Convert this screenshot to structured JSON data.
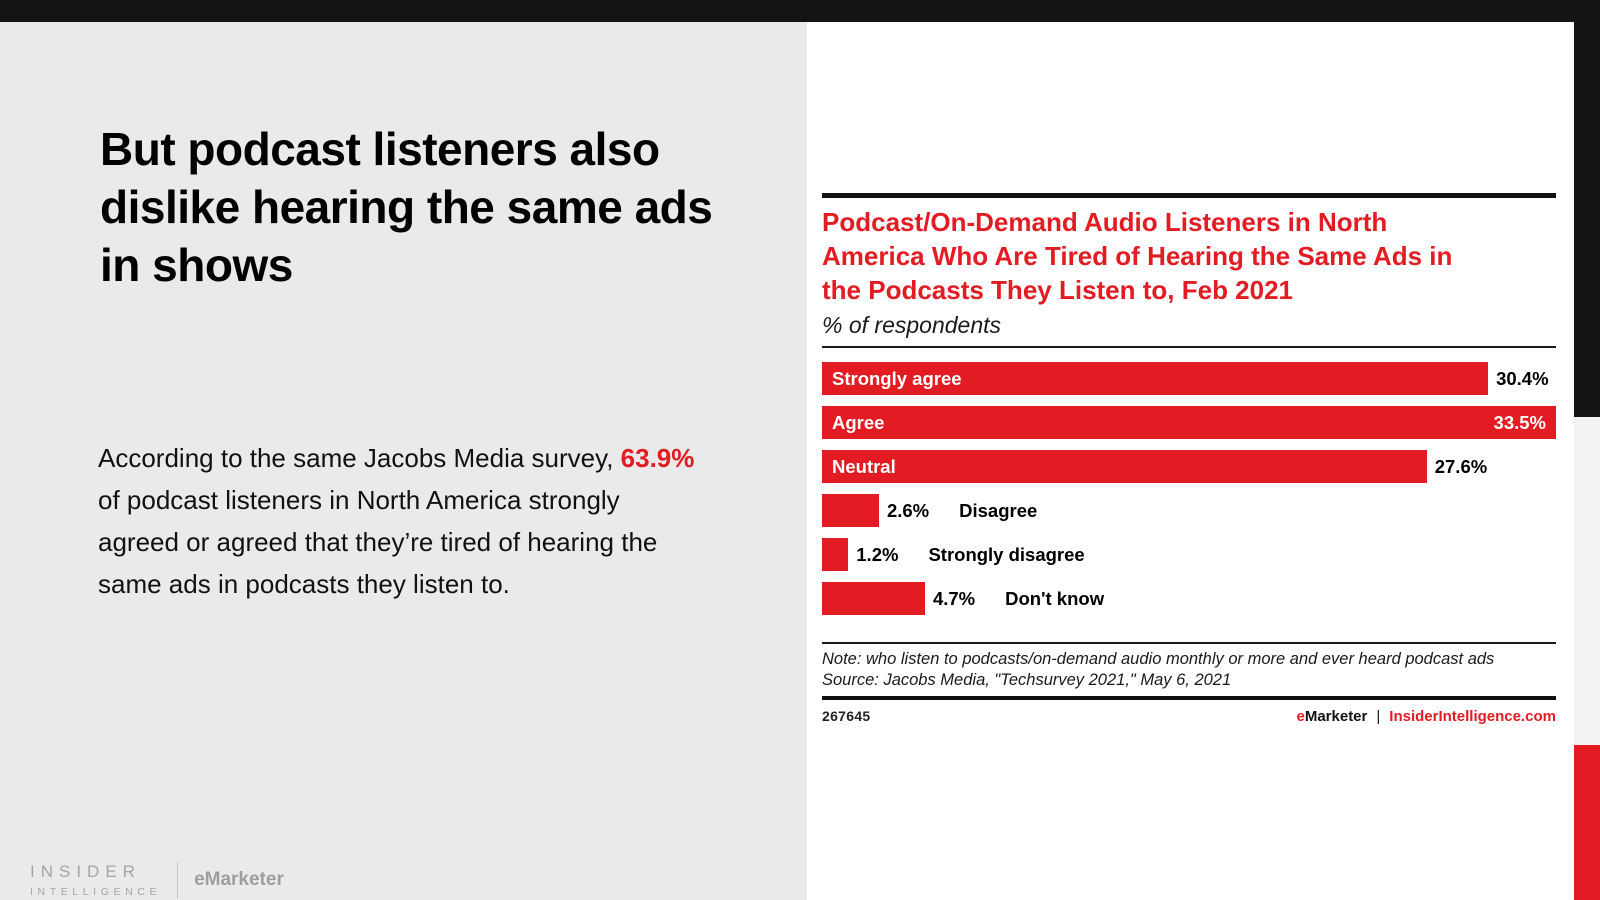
{
  "colors": {
    "accent_red": "#e31b23",
    "top_bar_black": "#141414",
    "left_panel_bg": "#eaeaea",
    "right_strip_gray": "#f2f2f2",
    "brand_gray": "#a5a5a5"
  },
  "left_panel": {
    "headline": "But podcast listeners also dislike hearing the same ads in shows",
    "body_pre": "According to the same Jacobs Media survey, ",
    "body_highlight": "63.9%",
    "body_post": " of podcast listeners in North America strongly agreed or agreed that they’re tired of hearing the same ads in podcasts they listen to.",
    "brand_insider_line1": "INSIDER",
    "brand_insider_line2": "INTELLIGENCE",
    "brand_emarketer": "eMarketer"
  },
  "chart": {
    "title_lines": [
      "Podcast/On-Demand Audio Listeners in North",
      "America Who Are Tired of Hearing the Same Ads in",
      "the Podcasts They Listen to, Feb 2021"
    ],
    "subtitle": "% of respondents",
    "note": "Note: who listen to podcasts/on-demand audio monthly or more and ever heard podcast ads",
    "source": "Source: Jacobs Media, \"Techsurvey 2021,\" May 6, 2021",
    "footer_id": "267645",
    "footer_brand_first_letter": "e",
    "footer_brand_rest": "Marketer",
    "footer_separator": "|",
    "footer_site": "InsiderIntelligence.com"
  },
  "chart_data": {
    "type": "bar",
    "orientation": "horizontal",
    "title": "Podcast/On-Demand Audio Listeners in North America Who Are Tired of Hearing the Same Ads in the Podcasts They Listen to, Feb 2021",
    "subtitle": "% of respondents",
    "categories": [
      "Strongly agree",
      "Agree",
      "Neutral",
      "Disagree",
      "Strongly disagree",
      "Don't know"
    ],
    "values": [
      30.4,
      33.5,
      27.6,
      2.6,
      1.2,
      4.7
    ],
    "value_labels": [
      "30.4%",
      "33.5%",
      "27.6%",
      "2.6%",
      "1.2%",
      "4.7%"
    ],
    "xlim": [
      0,
      33.5
    ],
    "bar_color": "#e31b23",
    "grid": false,
    "legend": false,
    "note": "Note: who listen to podcasts/on-demand audio monthly or more and ever heard podcast ads",
    "source": "Source: Jacobs Media, \"Techsurvey 2021,\" May 6, 2021"
  }
}
